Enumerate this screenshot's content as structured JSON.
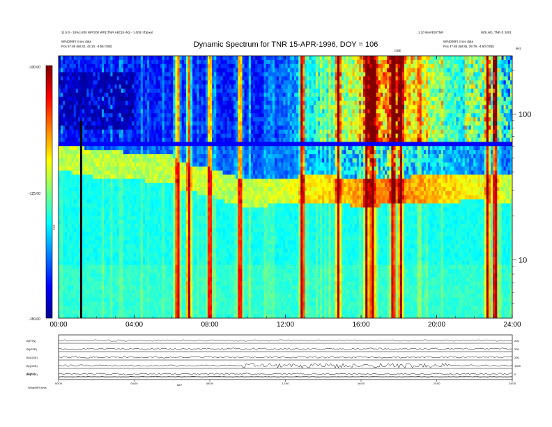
{
  "header": {
    "title": "Dynamic Spectrum for TNR 15-APR-1996, DOY = 106",
    "left_line1": "11.5.0 - 10% [-200 WP/200 WP] [TNR ABC(S+N)] - 1.000 nT/pixel",
    "left_line2": "WIND/MFI 3 sec data",
    "left_line3": "Pos    57.80 (58.32, 42.10, -4.55 GSE)",
    "right_line1": "1.10 WAVES/TNR",
    "right_line2": "MOLHO_TNR E 2001",
    "right_line3": "WIND/MFI 3 sec data",
    "right_line4": "Pos    47.85 (58.85, 39.79, -4.50 GSE)",
    "center_small": "GSE",
    "khz_label": "kHz"
  },
  "colorbar": {
    "tick_labels": [
      "-100.00",
      "-125.00",
      "-150.00"
    ],
    "unit_label": "TNR"
  },
  "chart_data": {
    "type": "heatmap",
    "title": "Dynamic Spectrum for TNR 15-APR-1996, DOY = 106",
    "x_ticks": [
      "00:00",
      "04:00",
      "08:00",
      "12:00",
      "16:00",
      "20:00",
      "24:00"
    ],
    "x_range_hours": [
      0,
      24
    ],
    "y_scale": "log",
    "y_unit": "kHz",
    "y_range_khz": [
      4,
      250
    ],
    "y_tick_labels": [
      "100",
      "10"
    ],
    "color_scale": {
      "min_db": -150.0,
      "max_db": -100.0,
      "colormap": "jet"
    },
    "features": {
      "data_gap_hours": [
        1.2
      ],
      "instrument_band_switch_khz": 64,
      "plasma_line_khz": [
        [
          0,
          55
        ],
        [
          2,
          49
        ],
        [
          4,
          47
        ],
        [
          6,
          45
        ],
        [
          6.5,
          40
        ],
        [
          8,
          37
        ],
        [
          9,
          33
        ],
        [
          10,
          31
        ],
        [
          12,
          32
        ],
        [
          14,
          33
        ],
        [
          16,
          31
        ],
        [
          18,
          32
        ],
        [
          20,
          33
        ],
        [
          22,
          34
        ],
        [
          24,
          33
        ]
      ],
      "bursts_hours": [
        6.3,
        6.9,
        8.0,
        9.6,
        12.9,
        14.8,
        16.3,
        16.6,
        17.7,
        18.1,
        22.7,
        23.1
      ],
      "strong_activity_hours": [
        15.5,
        20.0
      ]
    }
  },
  "panels": {
    "labels": [
      "B(RTN)",
      "Bt(GSE)",
      "Bx(GSE)",
      "By(GSE)",
      "Bz(GSE)",
      "|B|(nT)"
    ],
    "right_scales": [
      "200",
      "200",
      "200",
      "1000",
      "0"
    ],
    "time_ticks": [
      "00:00",
      "04:00",
      "08:00",
      "12:00",
      "16:00",
      "20:00",
      "24:00"
    ],
    "footer_left": "Wind/MFI  km/s",
    "footer_mid": "keV"
  }
}
